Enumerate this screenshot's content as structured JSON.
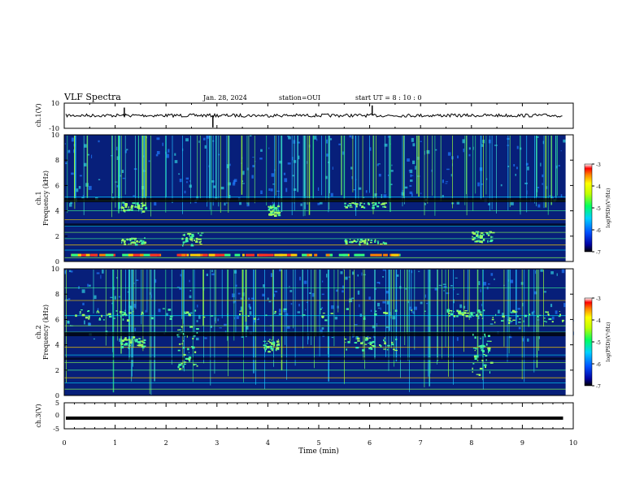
{
  "header": {
    "title": "VLF Spectra",
    "date": "Jan. 28, 2024",
    "station": "station=OUI",
    "start": "start UT =  8 : 10 : 0"
  },
  "chart_data": [
    {
      "type": "line",
      "id": "ch1-waveform",
      "ylabel": "ch.1(V)",
      "ylim": [
        -10,
        10
      ],
      "yticks": [
        "10",
        "-10"
      ],
      "xlim": [
        0,
        10
      ],
      "baseline": 0.2,
      "spikes": [
        {
          "t": 1.18,
          "v": 2.5
        },
        {
          "t": 2.92,
          "v": -3.8
        },
        {
          "t": 6.05,
          "v": 3.2
        }
      ]
    },
    {
      "type": "heatmap",
      "id": "ch1-spectrogram",
      "ylabel": "ch.1\nFrequency (kHz)",
      "ylim": [
        0,
        10
      ],
      "yticks": [
        "0",
        "2",
        "4",
        "6",
        "8",
        "10"
      ],
      "xlim": [
        0,
        10
      ],
      "colorbar": {
        "label": "log(PSD)(V²/Hz)",
        "range": [
          -7,
          -3
        ],
        "ticks": [
          "-3",
          "-4",
          "-5",
          "-6",
          "-7"
        ]
      }
    },
    {
      "type": "heatmap",
      "id": "ch2-spectrogram",
      "ylabel": "ch.2\nFrequency (kHz)",
      "ylim": [
        0,
        10
      ],
      "yticks": [
        "0",
        "2",
        "4",
        "6",
        "8",
        "10"
      ],
      "xlim": [
        0,
        10
      ],
      "colorbar": {
        "label": "log(PSD)(V²/Hz)",
        "range": [
          -7,
          -3
        ],
        "ticks": [
          "-3",
          "-4",
          "-5",
          "-6",
          "-7"
        ]
      }
    },
    {
      "type": "line",
      "id": "ch3-waveform",
      "ylabel": "ch.3(V)",
      "ylim": [
        -5,
        5
      ],
      "yticks": [
        "5",
        "0",
        "-5"
      ],
      "xlim": [
        0,
        9.8
      ],
      "baseline": -0.9
    }
  ],
  "xaxis": {
    "label": "Time (min)",
    "ticks": [
      "0",
      "1",
      "2",
      "3",
      "4",
      "5",
      "6",
      "7",
      "8",
      "9",
      "10"
    ]
  }
}
